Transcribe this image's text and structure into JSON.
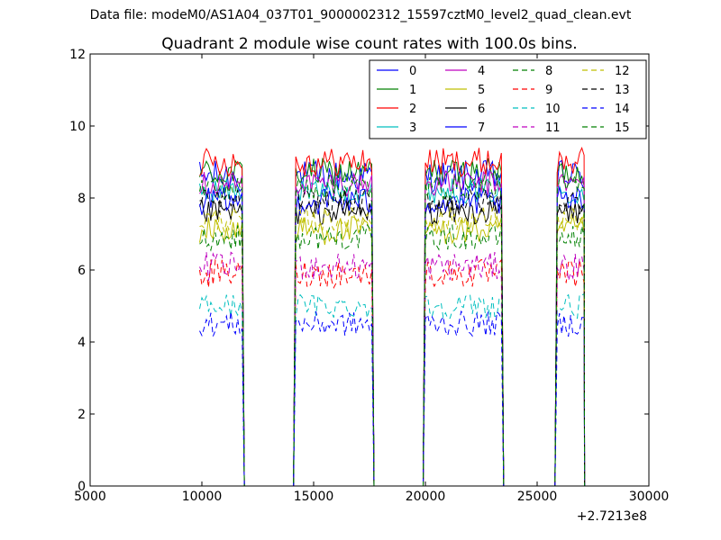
{
  "page": {
    "suptitle": "Data file: modeM0/AS1A04_037T01_9000002312_15597cztM0_level2_quad_clean.evt"
  },
  "chart_data": {
    "type": "line",
    "title": "Quadrant 2 module wise count rates with 100.0s bins.",
    "xlabel": "",
    "ylabel": "",
    "x_offset_label": "+2.7213e8",
    "xlim": [
      5000,
      30000
    ],
    "ylim": [
      0,
      12
    ],
    "xticks": [
      5000,
      10000,
      15000,
      20000,
      25000,
      30000
    ],
    "xtick_labels": [
      "5000",
      "10000",
      "15000",
      "20000",
      "25000",
      "30000"
    ],
    "yticks": [
      0,
      2,
      4,
      6,
      8,
      10,
      12
    ],
    "ytick_labels": [
      "0",
      "2",
      "4",
      "6",
      "8",
      "10",
      "12"
    ],
    "grid": false,
    "legend": {
      "placement": "top-right",
      "columns": 4
    },
    "bin_width": 100,
    "segments": [
      {
        "start": 9900,
        "end": 11800
      },
      {
        "start": 14200,
        "end": 17600
      },
      {
        "start": 20000,
        "end": 23400
      },
      {
        "start": 25900,
        "end": 27100
      }
    ],
    "gap_level": 0,
    "series": [
      {
        "name": "0",
        "color": "#0000ff",
        "dashed": false,
        "mean": 8.6,
        "noise": 0.45
      },
      {
        "name": "1",
        "color": "#008000",
        "dashed": false,
        "mean": 8.7,
        "noise": 0.4
      },
      {
        "name": "2",
        "color": "#ff0000",
        "dashed": false,
        "mean": 9.0,
        "noise": 0.4
      },
      {
        "name": "3",
        "color": "#00bfbf",
        "dashed": false,
        "mean": 8.2,
        "noise": 0.35
      },
      {
        "name": "4",
        "color": "#bf00bf",
        "dashed": false,
        "mean": 8.4,
        "noise": 0.35
      },
      {
        "name": "5",
        "color": "#bfbf00",
        "dashed": false,
        "mean": 7.1,
        "noise": 0.4
      },
      {
        "name": "6",
        "color": "#000000",
        "dashed": false,
        "mean": 7.6,
        "noise": 0.35
      },
      {
        "name": "7",
        "color": "#0000ff",
        "dashed": false,
        "mean": 7.9,
        "noise": 0.4
      },
      {
        "name": "8",
        "color": "#008000",
        "dashed": true,
        "mean": 6.9,
        "noise": 0.35
      },
      {
        "name": "9",
        "color": "#ff0000",
        "dashed": true,
        "mean": 5.9,
        "noise": 0.4
      },
      {
        "name": "10",
        "color": "#00bfbf",
        "dashed": true,
        "mean": 5.0,
        "noise": 0.35
      },
      {
        "name": "11",
        "color": "#bf00bf",
        "dashed": true,
        "mean": 6.1,
        "noise": 0.4
      },
      {
        "name": "12",
        "color": "#bfbf00",
        "dashed": true,
        "mean": 7.4,
        "noise": 0.35
      },
      {
        "name": "13",
        "color": "#000000",
        "dashed": true,
        "mean": 7.9,
        "noise": 0.35
      },
      {
        "name": "14",
        "color": "#0000ff",
        "dashed": true,
        "mean": 4.5,
        "noise": 0.35
      },
      {
        "name": "15",
        "color": "#008000",
        "dashed": true,
        "mean": 8.3,
        "noise": 0.35
      }
    ]
  }
}
